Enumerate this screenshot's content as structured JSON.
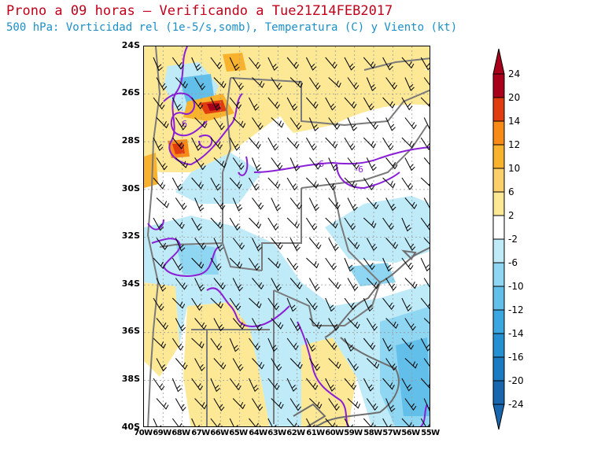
{
  "header": {
    "title": "Prono a 09 horas – Verificando a Tue21Z14FEB2017",
    "subtitle": "500 hPa: Vorticidad rel (1e-5/s,somb), Temperatura (C) y Viento (kt)"
  },
  "map": {
    "lat_labels": [
      "24S",
      "26S",
      "28S",
      "30S",
      "32S",
      "34S",
      "36S",
      "38S",
      "40S"
    ],
    "lon_labels": [
      "70W",
      "69W",
      "68W",
      "67W",
      "66W",
      "65W",
      "64W",
      "63W",
      "62W",
      "61W",
      "60W",
      "59W",
      "58W",
      "57W",
      "56W",
      "55W"
    ],
    "contour_labels": [
      "-6",
      "-6",
      "-6"
    ],
    "colors": {
      "border": "#7a7a7a",
      "coast": "#6e6e6e",
      "temperature_contour": "#8a1fd6",
      "grid": "#9a9a9a",
      "wind_barb": "#000000"
    }
  },
  "colorbar": {
    "labels": [
      "24",
      "20",
      "14",
      "12",
      "10",
      "6",
      "2",
      "-2",
      "-6",
      "-10",
      "-12",
      "-14",
      "-16",
      "-20",
      "-24"
    ],
    "colors": [
      "#a8001a",
      "#e03c10",
      "#f88a18",
      "#f9b22e",
      "#fbd06a",
      "#fde896",
      "#ffffff",
      "#bfeaf8",
      "#8fd6f2",
      "#62bfea",
      "#3ba7e0",
      "#2490d2",
      "#1b7bc2",
      "#1866ad"
    ]
  }
}
